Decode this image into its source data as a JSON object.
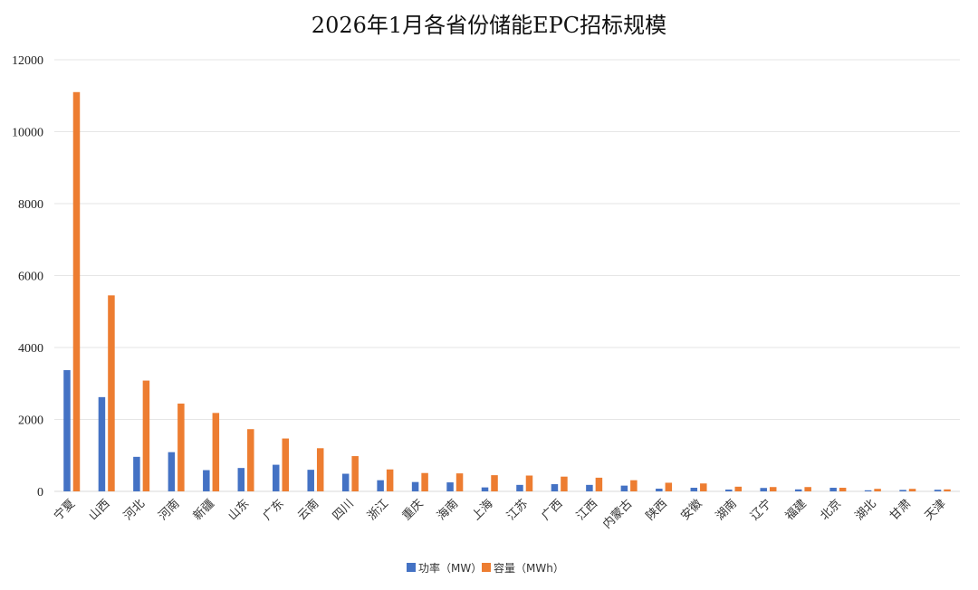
{
  "chart_data": {
    "type": "bar",
    "title": "2026年1月各省份储能EPC招标规模",
    "xlabel": "",
    "ylabel": "",
    "ylim": [
      0,
      12000
    ],
    "yticks": [
      0,
      2000,
      4000,
      6000,
      8000,
      10000,
      12000
    ],
    "grid": true,
    "legend_position": "bottom",
    "categories": [
      "宁夏",
      "山西",
      "河北",
      "河南",
      "新疆",
      "山东",
      "广东",
      "云南",
      "四川",
      "浙江",
      "重庆",
      "海南",
      "上海",
      "江苏",
      "广西",
      "江西",
      "内蒙古",
      "陕西",
      "安徽",
      "湖南",
      "辽宁",
      "福建",
      "北京",
      "湖北",
      "甘肃",
      "天津"
    ],
    "series": [
      {
        "name": "功率（MW）",
        "color": "#4472C4",
        "values": [
          3370,
          2620,
          960,
          1090,
          590,
          650,
          740,
          600,
          490,
          310,
          260,
          250,
          110,
          180,
          200,
          180,
          160,
          75,
          100,
          50,
          95,
          55,
          100,
          30,
          40,
          45
        ]
      },
      {
        "name": "容量（MWh）",
        "color": "#ED7D31",
        "values": [
          11100,
          5450,
          3080,
          2440,
          2180,
          1730,
          1470,
          1200,
          980,
          610,
          510,
          500,
          450,
          440,
          410,
          380,
          310,
          240,
          220,
          130,
          120,
          120,
          100,
          70,
          70,
          55
        ]
      }
    ]
  }
}
